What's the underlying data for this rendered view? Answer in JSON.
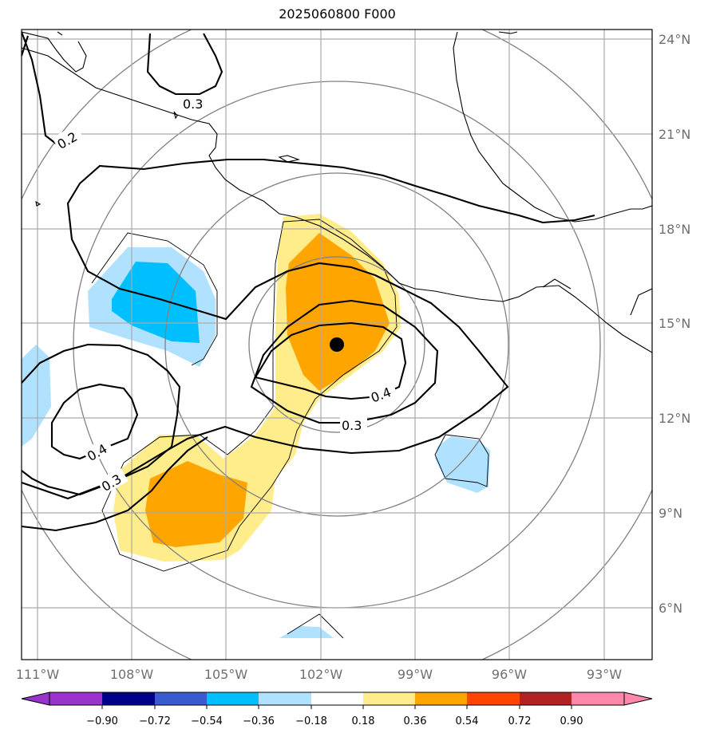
{
  "title": "2025060800 F000",
  "longitude_labels": [
    "111°W",
    "108°W",
    "105°W",
    "102°W",
    "99°W",
    "96°W",
    "93°W"
  ],
  "latitude_labels": [
    "24°N",
    "21°N",
    "18°N",
    "15°N",
    "12°N",
    "9°N",
    "6°N"
  ],
  "contour_labels": [
    "0.2",
    "0.3",
    "0.4",
    "0.3",
    "0.4",
    "0.3"
  ],
  "colorbar": {
    "tick_labels": [
      "−0.90",
      "−0.72",
      "−0.54",
      "−0.36",
      "−0.18",
      "0.18",
      "0.36",
      "0.54",
      "0.72",
      "0.90"
    ],
    "colors": [
      "#9933cc",
      "#00008b",
      "#3a5bd0",
      "#00bfff",
      "#b0e2ff",
      "#ffffff",
      "#ffec8b",
      "#ffa500",
      "#ff4500",
      "#b22222",
      "#ff88aa"
    ]
  },
  "shading_colors": {
    "light_blue": "#b0e2ff",
    "blue": "#00bfff",
    "light_yellow": "#ffec8b",
    "orange": "#ffa500"
  },
  "center_marker": "storm-center-dot"
}
